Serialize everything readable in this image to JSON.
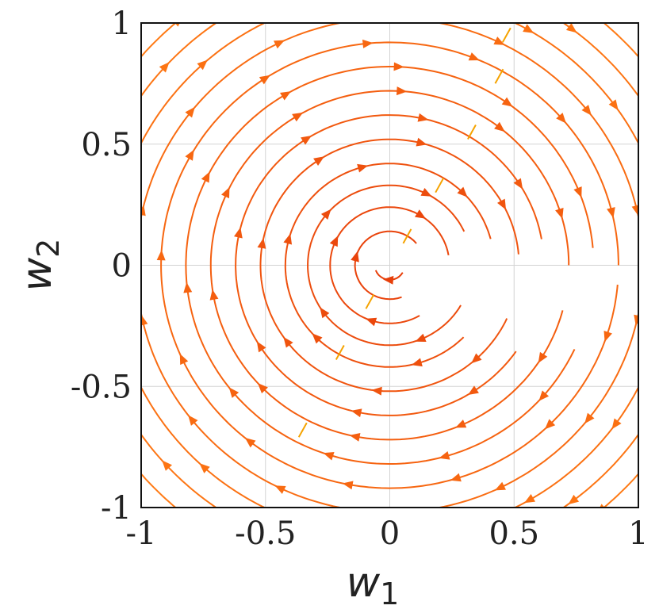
{
  "chart_data": {
    "type": "streamplot",
    "title": "",
    "xlabel": {
      "symbol": "w",
      "subscript": "1"
    },
    "ylabel": {
      "symbol": "w",
      "subscript": "2"
    },
    "xlim": [
      -1,
      1
    ],
    "ylim": [
      -1,
      1
    ],
    "xticks": [
      -1,
      -0.5,
      0,
      0.5,
      1
    ],
    "yticks": [
      -1,
      -0.5,
      0,
      0.5,
      1
    ],
    "xtick_labels": [
      "-1",
      "-0.5",
      "0",
      "0.5",
      "1"
    ],
    "ytick_labels": [
      "-1",
      "-0.5",
      "0",
      "0.5",
      "1"
    ],
    "grid": true,
    "field": {
      "u": "w2",
      "v": "-w1",
      "rotation": "clockwise"
    },
    "circles": [
      {
        "r": 0.06,
        "start": 200,
        "end": 330
      },
      {
        "r": 0.14,
        "start": 40,
        "end": 290
      },
      {
        "r": 0.24,
        "start": 10,
        "end": 300
      },
      {
        "r": 0.33,
        "start": 25,
        "end": 330
      },
      {
        "r": 0.42,
        "start": 15,
        "end": 315
      },
      {
        "r": 0.52,
        "start": 5,
        "end": 335
      },
      {
        "r": 0.62,
        "start": 10,
        "end": 325
      },
      {
        "r": 0.72,
        "start": 0,
        "end": 345
      },
      {
        "r": 0.82,
        "start": 5,
        "end": 335
      },
      {
        "r": 0.92,
        "start": 0,
        "end": 355
      },
      {
        "r": 1.02,
        "start": 0,
        "end": 360
      },
      {
        "r": 1.12,
        "start": 0,
        "end": 360
      },
      {
        "r": 1.22,
        "start": 0,
        "end": 360
      },
      {
        "r": 1.32,
        "start": 0,
        "end": 360
      }
    ],
    "colors": {
      "inner": "#e63c0a",
      "outer": "#ff7a14",
      "seam": "#f5a300",
      "grid": "#d3d3d3",
      "frame": "#111111"
    }
  }
}
